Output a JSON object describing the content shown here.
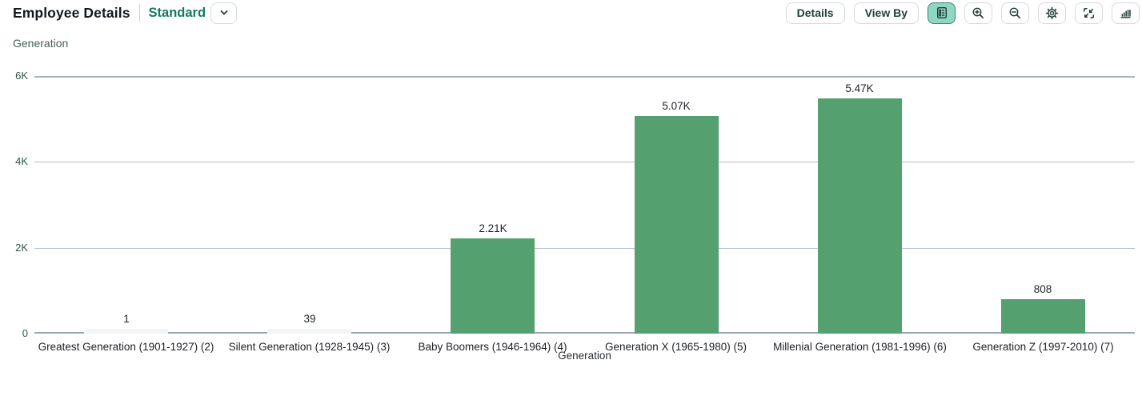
{
  "header": {
    "title": "Employee Details",
    "variant": {
      "label": "Standard",
      "chevron_icon": "chevron-down-icon"
    },
    "toolbar": {
      "details_label": "Details",
      "view_by_label": "View By",
      "icons": [
        "legend-icon",
        "zoom-in-icon",
        "zoom-out-icon",
        "settings-icon",
        "resize-icon",
        "bar-chart-icon"
      ],
      "selected_icon": "legend-icon"
    }
  },
  "colors": {
    "bar": "#54a06e",
    "min_bar": "#f2f4f6",
    "accent_teal": "#117a5f",
    "selected_icon_bg": "#8fd7c2",
    "grid": "#b4c0cd",
    "axis_line": "#97a8ba"
  },
  "chart_data": {
    "type": "bar",
    "title": "Generation",
    "xlabel": "Generation",
    "ylabel": "",
    "categories": [
      "Greatest Generation (1901-1927) (2)",
      "Silent Generation (1928-1945) (3)",
      "Baby Boomers (1946-1964) (4)",
      "Generation X (1965-1980) (5)",
      "Millenial Generation (1981-1996) (6)",
      "Generation Z (1997-2010) (7)"
    ],
    "values": [
      1,
      39,
      2210,
      5070,
      5470,
      808
    ],
    "value_labels": [
      "1",
      "39",
      "2.21K",
      "5.07K",
      "5.47K",
      "808"
    ],
    "ylim": [
      0,
      6000
    ],
    "yticks": [
      {
        "value": 0,
        "label": "0"
      },
      {
        "value": 2000,
        "label": "2K"
      },
      {
        "value": 4000,
        "label": "4K"
      },
      {
        "value": 6000,
        "label": "6K"
      }
    ],
    "grid": true,
    "legend_position": "top-left"
  }
}
